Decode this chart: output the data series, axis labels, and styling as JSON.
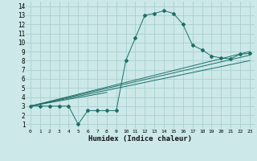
{
  "xlabel": "Humidex (Indice chaleur)",
  "bg_color": "#cce8e8",
  "grid_color": "#aacfcf",
  "line_color": "#1a7068",
  "xlim": [
    -0.5,
    23.5
  ],
  "ylim": [
    0.5,
    14.5
  ],
  "xticks": [
    0,
    1,
    2,
    3,
    4,
    5,
    6,
    7,
    8,
    9,
    10,
    11,
    12,
    13,
    14,
    15,
    16,
    17,
    18,
    19,
    20,
    21,
    22,
    23
  ],
  "yticks": [
    1,
    2,
    3,
    4,
    5,
    6,
    7,
    8,
    9,
    10,
    11,
    12,
    13,
    14
  ],
  "main_series": [
    [
      0,
      3
    ],
    [
      1,
      3
    ],
    [
      2,
      3
    ],
    [
      3,
      3
    ],
    [
      4,
      3
    ],
    [
      5,
      1
    ],
    [
      6,
      2.5
    ],
    [
      7,
      2.5
    ],
    [
      8,
      2.5
    ],
    [
      9,
      2.5
    ],
    [
      10,
      8
    ],
    [
      11,
      10.5
    ],
    [
      12,
      13
    ],
    [
      13,
      13.2
    ],
    [
      14,
      13.5
    ],
    [
      15,
      13.2
    ],
    [
      16,
      12
    ],
    [
      17,
      9.7
    ],
    [
      18,
      9.2
    ],
    [
      19,
      8.5
    ],
    [
      20,
      8.3
    ],
    [
      21,
      8.2
    ],
    [
      22,
      8.7
    ],
    [
      23,
      8.8
    ]
  ],
  "linear_lines": [
    [
      [
        0,
        3
      ],
      [
        23,
        9.0
      ]
    ],
    [
      [
        0,
        3
      ],
      [
        23,
        8.6
      ]
    ],
    [
      [
        0,
        3
      ],
      [
        8,
        4.5
      ]
    ],
    [
      [
        0,
        3
      ],
      [
        23,
        8.0
      ]
    ]
  ]
}
